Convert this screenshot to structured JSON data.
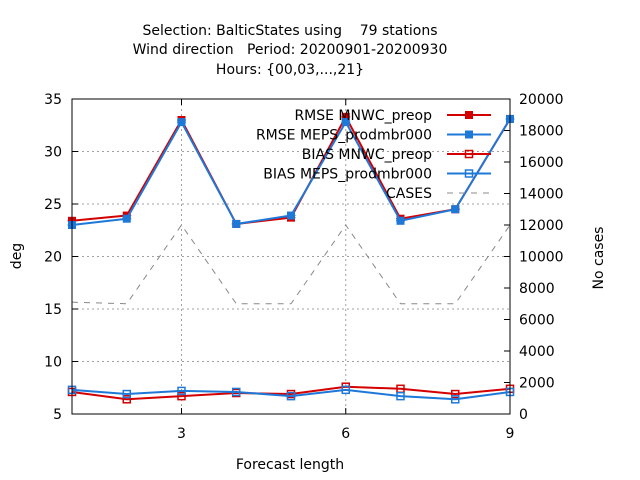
{
  "chart_data": {
    "type": "line",
    "title_lines": [
      "Selection: BalticStates using    79 stations",
      "Wind direction   Period: 20200901-20200930",
      "Hours: {00,03,...,21}"
    ],
    "xlabel": "Forecast length",
    "ylabel": "deg",
    "y2label": "No cases",
    "x": [
      1,
      2,
      3,
      4,
      5,
      6,
      7,
      8,
      9
    ],
    "xticks": [
      "3",
      "6",
      "9"
    ],
    "xtick_values": [
      3,
      6,
      9
    ],
    "xlim": [
      1,
      9
    ],
    "ylim": [
      5,
      35
    ],
    "yticks": [
      "5",
      "10",
      "15",
      "20",
      "25",
      "30",
      "35"
    ],
    "y2lim": [
      0,
      20000
    ],
    "y2ticks": [
      "0",
      "2000",
      "4000",
      "6000",
      "8000",
      "10000",
      "12000",
      "14000",
      "16000",
      "18000",
      "20000"
    ],
    "grid": true,
    "legend_position": "top-right",
    "series": [
      {
        "name": "RMSE MNWC_preop",
        "axis": "y",
        "color": "#d40000",
        "marker": "filled-square",
        "values": [
          23.4,
          23.9,
          33.0,
          23.1,
          23.7,
          33.3,
          23.6,
          24.5,
          33.1
        ]
      },
      {
        "name": "RMSE MEPS_prodmbr000",
        "axis": "y",
        "color": "#1e78d8",
        "marker": "filled-square",
        "values": [
          23.0,
          23.6,
          32.8,
          23.1,
          23.9,
          32.8,
          23.4,
          24.5,
          33.1
        ]
      },
      {
        "name": "BIAS MNWC_preop",
        "axis": "y",
        "color": "#d40000",
        "marker": "open-square",
        "values": [
          7.1,
          6.4,
          6.7,
          7.0,
          6.9,
          7.6,
          7.4,
          6.9,
          7.4
        ]
      },
      {
        "name": "BIAS MEPS_prodmbr000",
        "axis": "y",
        "color": "#1e78d8",
        "marker": "open-square",
        "values": [
          7.3,
          6.9,
          7.2,
          7.1,
          6.7,
          7.3,
          6.7,
          6.4,
          7.1
        ]
      },
      {
        "name": "CASES",
        "axis": "y2",
        "color": "#888888",
        "marker": "none",
        "dashed": true,
        "values": [
          7100,
          7000,
          12000,
          7000,
          7000,
          12000,
          7000,
          7000,
          12000
        ]
      }
    ]
  }
}
